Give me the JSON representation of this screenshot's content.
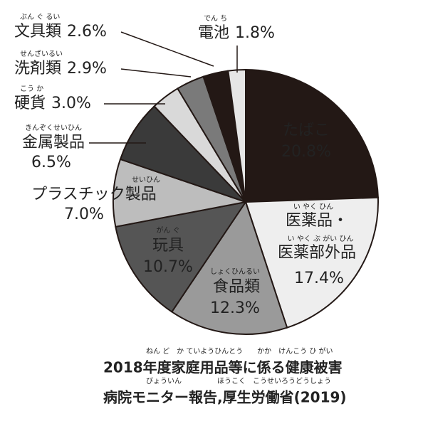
{
  "chart_data": {
    "type": "pie",
    "categories": [
      [
        "たばこ"
      ],
      [
        "医薬品・",
        "医薬部外品"
      ],
      [
        "食品類"
      ],
      [
        "玩具"
      ],
      [
        "プラスチック製品"
      ],
      [
        "金属製品"
      ],
      [
        "硬貨"
      ],
      [
        "洗剤類"
      ],
      [
        "文具類"
      ],
      [
        "電池"
      ]
    ],
    "readings": [
      [],
      [
        "い やく ひん",
        "い やく ぶ がい ひん"
      ],
      [
        "しょくひんるい"
      ],
      [
        "がん ぐ"
      ],
      [
        "せいひん"
      ],
      [
        "きんぞくせいひん"
      ],
      [
        "こう か"
      ],
      [
        "せんざいるい"
      ],
      [
        "ぶん ぐ るい"
      ],
      [
        "でん ち"
      ]
    ],
    "values": [
      20.8,
      17.4,
      12.3,
      10.7,
      7.0,
      6.5,
      3.0,
      2.9,
      2.6,
      1.8
    ],
    "value_labels": [
      "20.8%",
      "17.4%",
      "12.3%",
      "10.7%",
      "7.0%",
      "6.5%",
      "3.0%",
      "2.9%",
      "2.6%",
      "1.8%"
    ],
    "colors": [
      "#231815",
      "#eeeeee",
      "#9a9a9a",
      "#555555",
      "#bdbdbd",
      "#3a3a3a",
      "#d9d9d9",
      "#7a7a7a",
      "#231815",
      "#e6e6e6"
    ],
    "source": [
      "2018年度家庭用品等に係る健康被害",
      "病院モニター報告,厚生労働省(2019)"
    ],
    "source_readings": [
      "ねん ど　か ていようひんとう　　かか　けんこう ひ がい",
      "びょういん　　　　　ほうこく　こうせいろうどうしょう"
    ]
  }
}
